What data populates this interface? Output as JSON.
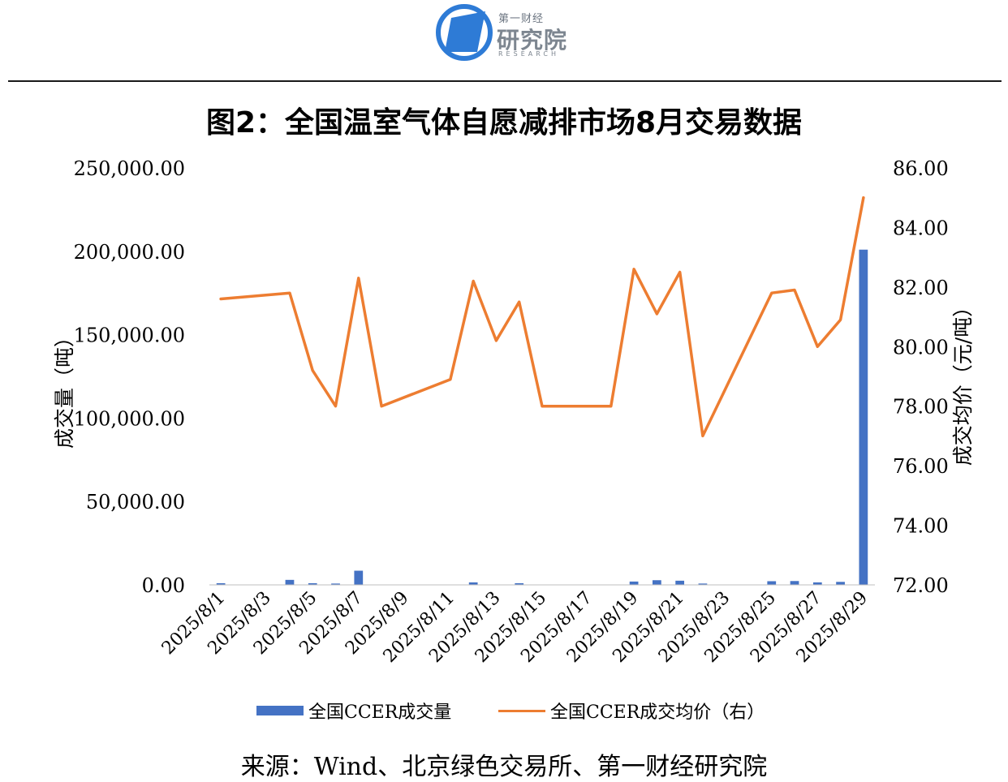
{
  "logo": {
    "icon": "first-finance-research-logo",
    "text_small": "第一财经",
    "text_big": "研究院",
    "text_en": "RESEARCH",
    "colors": {
      "blue": "#2e7bd6",
      "gray": "#7d8690"
    }
  },
  "chart_data": {
    "type": "bar+line",
    "title": "图2：全国温室气体自愿减排市场8月交易数据",
    "ylabel_left": "成交量（吨）",
    "ylabel_right": "成交均价（元/吨）",
    "ylim_left": [
      0,
      250000
    ],
    "ylim_right": [
      72,
      86
    ],
    "yticks_left": [
      "0.00",
      "50,000.00",
      "100,000.00",
      "150,000.00",
      "200,000.00",
      "250,000.00"
    ],
    "yticks_right": [
      "72.00",
      "74.00",
      "76.00",
      "78.00",
      "80.00",
      "82.00",
      "84.00",
      "86.00"
    ],
    "x": [
      "2025/8/1",
      "2025/8/2",
      "2025/8/3",
      "2025/8/4",
      "2025/8/5",
      "2025/8/6",
      "2025/8/7",
      "2025/8/8",
      "2025/8/9",
      "2025/8/10",
      "2025/8/11",
      "2025/8/12",
      "2025/8/13",
      "2025/8/14",
      "2025/8/15",
      "2025/8/16",
      "2025/8/17",
      "2025/8/18",
      "2025/8/19",
      "2025/8/20",
      "2025/8/21",
      "2025/8/22",
      "2025/8/23",
      "2025/8/24",
      "2025/8/25",
      "2025/8/26",
      "2025/8/27",
      "2025/8/28",
      "2025/8/29"
    ],
    "xtick_labels": [
      "2025/8/1",
      "2025/8/3",
      "2025/8/5",
      "2025/8/7",
      "2025/8/9",
      "2025/8/11",
      "2025/8/13",
      "2025/8/15",
      "2025/8/17",
      "2025/8/19",
      "2025/8/21",
      "2025/8/23",
      "2025/8/25",
      "2025/8/27",
      "2025/8/29"
    ],
    "series": [
      {
        "name": "全国CCER成交量",
        "type": "bar",
        "axis": "left",
        "color": "#4472c4",
        "values": [
          1000,
          null,
          null,
          3000,
          1000,
          800,
          8500,
          null,
          null,
          null,
          null,
          1500,
          null,
          1000,
          null,
          null,
          null,
          null,
          2000,
          2800,
          2500,
          800,
          null,
          null,
          2200,
          2300,
          1500,
          1800,
          201000
        ]
      },
      {
        "name": "全国CCER成交均价（右）",
        "type": "line",
        "axis": "right",
        "color": "#ed7d31",
        "values": [
          81.6,
          null,
          null,
          81.8,
          79.2,
          78.0,
          82.3,
          78.0,
          null,
          null,
          78.9,
          82.2,
          80.2,
          81.5,
          78.0,
          78.0,
          78.0,
          78.0,
          82.6,
          81.1,
          82.5,
          77.0,
          null,
          null,
          81.8,
          81.9,
          80.0,
          80.9,
          85.0
        ]
      }
    ],
    "legend": "bottom"
  },
  "source": "来源：Wind、北京绿色交易所、第一财经研究院"
}
